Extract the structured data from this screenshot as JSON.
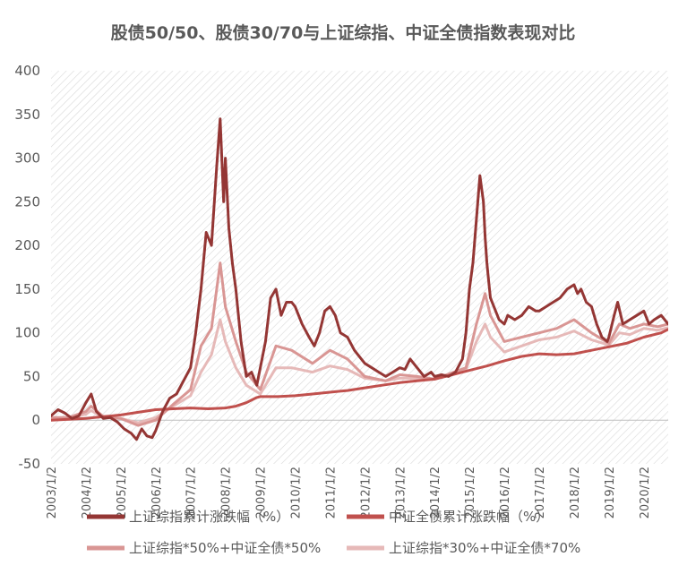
{
  "chart_data": {
    "type": "line",
    "title": "股债50/50、股债30/70与上证综指、中证全债指数表现对比",
    "xlabel": "",
    "ylabel": "",
    "ylim": [
      -50,
      400
    ],
    "yticks": [
      "400",
      "350",
      "300",
      "250",
      "200",
      "150",
      "100",
      "50",
      "0",
      "-50"
    ],
    "ytick_values": [
      400,
      350,
      300,
      250,
      200,
      150,
      100,
      50,
      0,
      -50
    ],
    "xticks": [
      "2003/1/2",
      "2004/1/2",
      "2005/1/2",
      "2006/1/2",
      "2007/1/2",
      "2008/1/2",
      "2009/1/2",
      "2010/1/2",
      "2011/1/2",
      "2012/1/2",
      "2013/1/2",
      "2014/1/2",
      "2015/1/2",
      "2016/1/2",
      "2017/1/2",
      "2018/1/2",
      "2019/1/2",
      "2020/1/2"
    ],
    "xtick_values": [
      2003,
      2004,
      2005,
      2006,
      2007,
      2008,
      2009,
      2010,
      2011,
      2012,
      2013,
      2014,
      2015,
      2016,
      2017,
      2018,
      2019,
      2020
    ],
    "xlim": [
      2003,
      2020.7
    ],
    "grid": "hatched",
    "legend_position": "bottom",
    "series": [
      {
        "name": "上证综指累计涨跌幅（%）",
        "color": "#943634",
        "width": 3,
        "x": [
          2003.0,
          2003.2,
          2003.4,
          2003.6,
          2003.8,
          2004.0,
          2004.15,
          2004.3,
          2004.5,
          2004.7,
          2004.9,
          2005.1,
          2005.3,
          2005.45,
          2005.6,
          2005.75,
          2005.9,
          2006.0,
          2006.2,
          2006.4,
          2006.6,
          2006.8,
          2007.0,
          2007.15,
          2007.3,
          2007.45,
          2007.6,
          2007.75,
          2007.85,
          2007.95,
          2008.0,
          2008.1,
          2008.2,
          2008.3,
          2008.45,
          2008.6,
          2008.75,
          2008.9,
          2009.0,
          2009.15,
          2009.3,
          2009.45,
          2009.6,
          2009.75,
          2009.9,
          2010.0,
          2010.2,
          2010.4,
          2010.55,
          2010.7,
          2010.85,
          2011.0,
          2011.15,
          2011.3,
          2011.5,
          2011.7,
          2011.9,
          2012.0,
          2012.2,
          2012.4,
          2012.6,
          2012.8,
          2013.0,
          2013.15,
          2013.3,
          2013.5,
          2013.7,
          2013.9,
          2014.0,
          2014.2,
          2014.4,
          2014.6,
          2014.8,
          2014.9,
          2015.0,
          2015.1,
          2015.2,
          2015.3,
          2015.4,
          2015.45,
          2015.5,
          2015.55,
          2015.6,
          2015.7,
          2015.85,
          2016.0,
          2016.1,
          2016.3,
          2016.5,
          2016.7,
          2016.9,
          2017.0,
          2017.2,
          2017.4,
          2017.6,
          2017.8,
          2018.0,
          2018.1,
          2018.2,
          2018.35,
          2018.5,
          2018.65,
          2018.8,
          2018.95,
          2019.0,
          2019.15,
          2019.25,
          2019.4,
          2019.6,
          2019.8,
          2020.0,
          2020.15,
          2020.3,
          2020.5,
          2020.7
        ],
        "y": [
          5,
          12,
          8,
          2,
          5,
          20,
          30,
          10,
          2,
          3,
          -2,
          -10,
          -15,
          -22,
          -10,
          -18,
          -20,
          -12,
          10,
          25,
          30,
          45,
          60,
          100,
          150,
          215,
          200,
          290,
          345,
          250,
          300,
          220,
          180,
          150,
          90,
          50,
          55,
          40,
          60,
          90,
          140,
          150,
          120,
          135,
          135,
          130,
          110,
          95,
          85,
          100,
          125,
          130,
          120,
          100,
          95,
          80,
          70,
          65,
          60,
          55,
          50,
          55,
          60,
          58,
          70,
          60,
          50,
          55,
          50,
          52,
          50,
          55,
          70,
          100,
          150,
          180,
          230,
          280,
          250,
          210,
          180,
          160,
          140,
          130,
          115,
          110,
          120,
          115,
          120,
          130,
          125,
          125,
          130,
          135,
          140,
          150,
          155,
          145,
          150,
          135,
          130,
          110,
          95,
          90,
          95,
          120,
          135,
          110,
          115,
          120,
          125,
          110,
          115,
          120,
          110
        ]
      },
      {
        "name": "中证全债累计涨跌幅（%）",
        "color": "#c0504d",
        "width": 3,
        "x": [
          2003.0,
          2003.5,
          2004.0,
          2004.5,
          2005.0,
          2005.5,
          2006.0,
          2006.5,
          2007.0,
          2007.5,
          2008.0,
          2008.3,
          2008.6,
          2008.9,
          2009.0,
          2009.5,
          2010.0,
          2010.5,
          2011.0,
          2011.5,
          2012.0,
          2012.5,
          2013.0,
          2013.5,
          2014.0,
          2014.5,
          2015.0,
          2015.5,
          2016.0,
          2016.5,
          2017.0,
          2017.5,
          2018.0,
          2018.5,
          2019.0,
          2019.5,
          2020.0,
          2020.5,
          2020.7
        ],
        "y": [
          0,
          1,
          2,
          4,
          6,
          9,
          12,
          13,
          14,
          13,
          14,
          16,
          20,
          26,
          27,
          27,
          28,
          30,
          32,
          34,
          37,
          40,
          43,
          45,
          47,
          52,
          57,
          62,
          68,
          73,
          76,
          75,
          76,
          80,
          84,
          88,
          95,
          100,
          104
        ]
      },
      {
        "name": "上证综指*50%+中证全债*50%",
        "color": "#d99694",
        "width": 3,
        "x": [
          2003.0,
          2003.5,
          2004.0,
          2004.15,
          2004.5,
          2005.0,
          2005.5,
          2006.0,
          2006.5,
          2007.0,
          2007.3,
          2007.6,
          2007.85,
          2008.0,
          2008.3,
          2008.6,
          2009.0,
          2009.45,
          2009.9,
          2010.5,
          2011.0,
          2011.5,
          2012.0,
          2012.6,
          2013.0,
          2013.5,
          2014.0,
          2014.9,
          2015.2,
          2015.45,
          2015.6,
          2016.0,
          2016.5,
          2017.0,
          2017.5,
          2018.0,
          2018.5,
          2019.0,
          2019.3,
          2019.6,
          2020.0,
          2020.4,
          2020.7
        ],
        "y": [
          3,
          3,
          10,
          16,
          4,
          2,
          -6,
          0,
          18,
          35,
          85,
          105,
          180,
          130,
          90,
          55,
          35,
          85,
          80,
          65,
          80,
          70,
          50,
          45,
          52,
          50,
          47,
          60,
          110,
          145,
          120,
          90,
          95,
          100,
          105,
          115,
          100,
          88,
          110,
          105,
          110,
          107,
          110
        ]
      },
      {
        "name": "上证综指*30%+中证全债*70%",
        "color": "#e6b9b8",
        "width": 3,
        "x": [
          2003.0,
          2003.5,
          2004.0,
          2004.15,
          2004.5,
          2005.0,
          2005.5,
          2006.0,
          2006.5,
          2007.0,
          2007.3,
          2007.6,
          2007.85,
          2008.0,
          2008.3,
          2008.6,
          2009.0,
          2009.45,
          2009.9,
          2010.5,
          2011.0,
          2011.5,
          2012.0,
          2012.6,
          2013.0,
          2013.5,
          2014.0,
          2014.9,
          2015.2,
          2015.45,
          2015.6,
          2016.0,
          2016.5,
          2017.0,
          2017.5,
          2018.0,
          2018.5,
          2019.0,
          2019.3,
          2019.6,
          2020.0,
          2020.4,
          2020.7
        ],
        "y": [
          2,
          2,
          7,
          11,
          3,
          2,
          -3,
          3,
          16,
          28,
          55,
          75,
          115,
          90,
          60,
          40,
          30,
          60,
          60,
          55,
          62,
          58,
          48,
          45,
          48,
          48,
          47,
          58,
          90,
          110,
          95,
          78,
          85,
          92,
          95,
          102,
          92,
          86,
          100,
          98,
          105,
          103,
          106
        ]
      }
    ]
  }
}
